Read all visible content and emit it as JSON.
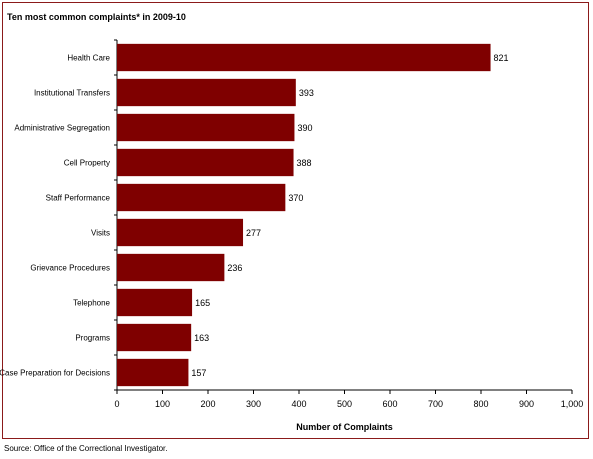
{
  "chart_data": {
    "type": "bar",
    "orientation": "horizontal",
    "title": "Ten most common complaints* in 2009-10",
    "xlabel": "Number of Complaints",
    "ylabel": "",
    "xlim": [
      0,
      1000
    ],
    "xticks": [
      0,
      100,
      200,
      300,
      400,
      500,
      600,
      700,
      800,
      900,
      1000
    ],
    "xtick_labels": [
      "0",
      "100",
      "200",
      "300",
      "400",
      "500",
      "600",
      "700",
      "800",
      "900",
      "1,000"
    ],
    "categories": [
      "Health Care",
      "Institutional Transfers",
      "Administrative Segregation",
      "Cell Property",
      "Staff Performance",
      "Visits",
      "Grievance Procedures",
      "Telephone",
      "Programs",
      "Case Preparation for Decisions"
    ],
    "values": [
      821,
      393,
      390,
      388,
      370,
      277,
      236,
      165,
      163,
      157
    ],
    "data_labels": [
      "821",
      "393",
      "390",
      "388",
      "370",
      "277",
      "236",
      "165",
      "163",
      "157"
    ],
    "bar_color": "#7f0000",
    "grid": false,
    "legend": "none"
  },
  "source": "Source:  Office of the Correctional Investigator."
}
